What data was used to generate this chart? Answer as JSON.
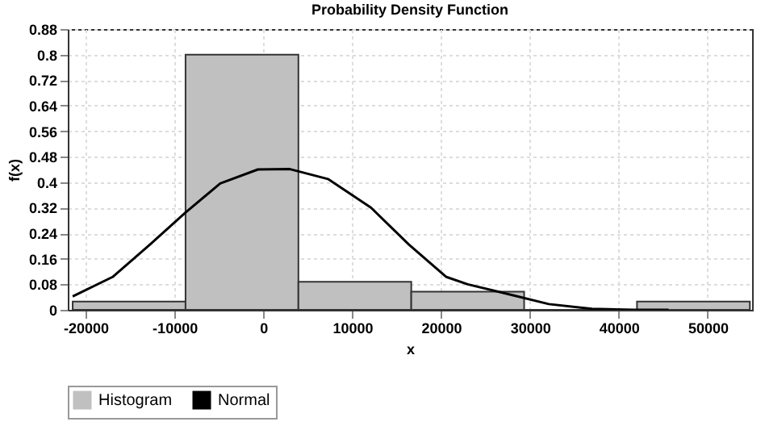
{
  "chart_data": {
    "type": "histogram",
    "title": "Probability Density Function",
    "xlabel": "x",
    "ylabel": "f(x)",
    "xlim": [
      -22000,
      55000
    ],
    "xticks": [
      -20000,
      -10000,
      0,
      10000,
      20000,
      30000,
      40000,
      50000
    ],
    "ylim": [
      0,
      0.88
    ],
    "yticks": [
      0,
      0.08,
      0.16,
      0.24,
      0.32,
      0.4,
      0.48,
      0.56,
      0.64,
      0.72,
      0.8,
      0.88
    ],
    "grid": true,
    "legend": "bottom",
    "series": [
      {
        "name": "Histogram",
        "color": "#c0c0c0",
        "bins": [
          -21450,
          -8750,
          3950,
          16650,
          29350,
          42050,
          54750
        ],
        "values": [
          0.026,
          0.8,
          0.088,
          0.057,
          0,
          0.026
        ]
      },
      {
        "name": "Normal",
        "type": "line",
        "color": "#000000",
        "x": [
          -21450,
          -16960,
          -12730,
          -8750,
          -4850,
          -600,
          3000,
          7270,
          12130,
          16360,
          20600,
          23000,
          27270,
          32120,
          36970,
          41800,
          45600
        ],
        "values": [
          0.042,
          0.103,
          0.205,
          0.305,
          0.396,
          0.44,
          0.441,
          0.41,
          0.32,
          0.205,
          0.103,
          0.08,
          0.051,
          0.018,
          0.003,
          0,
          0
        ]
      }
    ]
  }
}
